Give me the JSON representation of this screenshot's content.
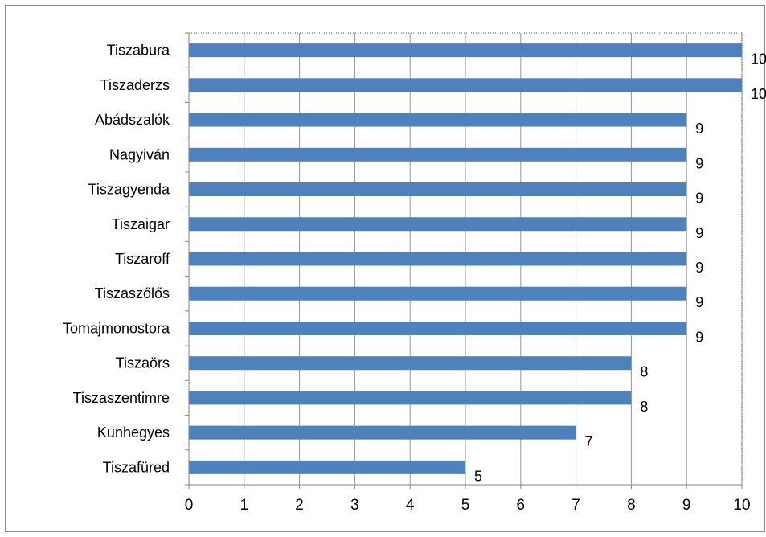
{
  "chart_data": {
    "type": "bar",
    "orientation": "horizontal",
    "title": "",
    "xlabel": "",
    "ylabel": "",
    "categories": [
      "Tiszabura",
      "Tiszaderzs",
      "Abádszalók",
      "Nagyiván",
      "Tiszagyenda",
      "Tiszaigar",
      "Tiszaroff",
      "Tiszaszőlős",
      "Tomajmonostora",
      "Tiszaörs",
      "Tiszaszentimre",
      "Kunhegyes",
      "Tiszafüred"
    ],
    "values": [
      10,
      10,
      9,
      9,
      9,
      9,
      9,
      9,
      9,
      8,
      8,
      7,
      5
    ],
    "xlim": [
      0,
      10
    ],
    "xticks": [
      "0",
      "1",
      "2",
      "3",
      "4",
      "5",
      "6",
      "7",
      "8",
      "9",
      "10"
    ],
    "grid": "vertical",
    "legend": "none",
    "data_labels": true,
    "bar_color": "#4f81bd",
    "grid_color": "#969696",
    "axis_color": "#868686"
  }
}
